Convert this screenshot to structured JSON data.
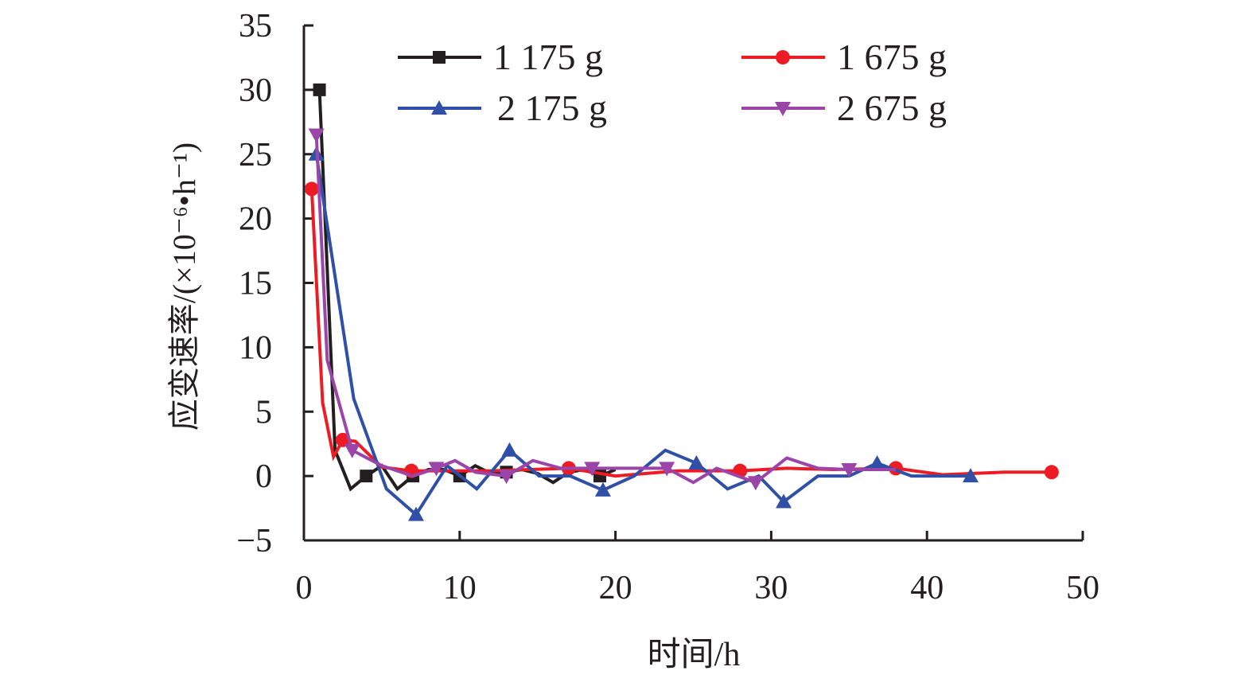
{
  "chart_data": {
    "type": "line",
    "title": "",
    "xlabel": "时间/h",
    "ylabel": "应变速率/(×10⁻⁶•h⁻¹)",
    "xlim": [
      0,
      50
    ],
    "ylim": [
      -5,
      35
    ],
    "xticks": [
      0,
      10,
      20,
      30,
      40,
      50
    ],
    "yticks": [
      -5,
      0,
      5,
      10,
      15,
      20,
      25,
      30,
      35
    ],
    "xtick_labels": [
      "0",
      "10",
      "20",
      "30",
      "40",
      "50"
    ],
    "ytick_labels": [
      "−5",
      "0",
      "5",
      "10",
      "15",
      "20",
      "25",
      "30",
      "35"
    ],
    "grid": false,
    "legend_position": "top",
    "series": [
      {
        "name": "1 175 g",
        "color": "#231f20",
        "marker": "square",
        "x": [
          1,
          2,
          3,
          4,
          5,
          6,
          7,
          8,
          9,
          10,
          11,
          12,
          13,
          14,
          15,
          16,
          17,
          18,
          19,
          20
        ],
        "y": [
          30,
          2,
          -1,
          0,
          0.8,
          -1,
          0,
          0.5,
          0.5,
          0,
          0.8,
          0.2,
          0.3,
          0.5,
          0.2,
          -0.5,
          0.3,
          0.5,
          0,
          0.5
        ],
        "marker_idx": [
          0,
          3,
          6,
          9,
          12,
          18
        ]
      },
      {
        "name": "1 675 g",
        "color": "#ed1c24",
        "marker": "circle",
        "x": [
          0.5,
          1.2,
          1.9,
          2.5,
          3.3,
          5,
          6.9,
          10,
          12,
          17,
          20,
          24,
          28,
          31,
          34,
          38,
          41,
          45,
          48
        ],
        "y": [
          22.3,
          5.7,
          1.5,
          2.8,
          2.7,
          0.7,
          0.4,
          0.4,
          0.4,
          0.6,
          0,
          0.4,
          0.4,
          0.6,
          0.5,
          0.6,
          0.1,
          0.3,
          0.3
        ],
        "marker_idx": [
          0,
          3,
          6,
          9,
          12,
          15,
          18
        ]
      },
      {
        "name": "2 175 g",
        "color": "#3050a8",
        "marker": "triangle-up",
        "x": [
          0.8,
          3.2,
          5.3,
          7.2,
          9.2,
          11.1,
          13.2,
          15.1,
          17.1,
          19.2,
          21.2,
          23.2,
          25.2,
          27.2,
          29.2,
          30.8,
          33,
          35,
          36.8,
          39,
          41,
          42.8
        ],
        "y": [
          25,
          6,
          -1,
          -3,
          0.8,
          -1,
          2,
          0,
          0,
          -1.1,
          0,
          2,
          1,
          -1,
          0,
          -2,
          0,
          0,
          1,
          0,
          0,
          0
        ],
        "marker_idx": [
          0,
          3,
          6,
          9,
          12,
          15,
          18,
          21
        ]
      },
      {
        "name": "2 675 g",
        "color": "#9b45a8",
        "marker": "triangle-down",
        "x": [
          0.8,
          1.5,
          3.1,
          5,
          7,
          8.5,
          9.7,
          11,
          13,
          14.7,
          16.5,
          18.5,
          23.3,
          25,
          26.5,
          29,
          31,
          33,
          35,
          38
        ],
        "y": [
          26.5,
          9,
          2,
          0.8,
          0,
          0.6,
          1.2,
          0.3,
          0,
          1.2,
          0.6,
          0.6,
          0.6,
          -0.5,
          0.6,
          -0.5,
          1.4,
          0.6,
          0.5,
          0.5
        ],
        "marker_idx": [
          0,
          2,
          5,
          8,
          11,
          12,
          15,
          18
        ]
      }
    ]
  }
}
